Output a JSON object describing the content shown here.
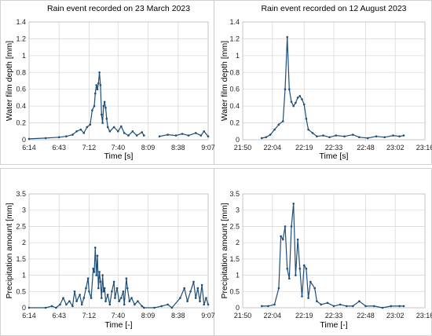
{
  "chart_data": [
    {
      "type": "line",
      "title": "Rain event recorded on 23 March 2023",
      "xlabel": "Time [s]",
      "ylabel": "Water film depth [mm]",
      "xlim": [
        "6:14",
        "9:07"
      ],
      "ylim": [
        0,
        1.4
      ],
      "xticks": [
        "6:14",
        "6:43",
        "7:12",
        "7:40",
        "8:09",
        "8:38",
        "9:07"
      ],
      "yticks": [
        "0",
        "0.2",
        "0.4",
        "0.6",
        "0.8",
        "1",
        "1.2",
        "1.4"
      ],
      "grid": true,
      "series": [
        {
          "values": [
            [
              "6:14",
              0.01
            ],
            [
              "6:30",
              0.02
            ],
            [
              "6:43",
              0.03
            ],
            [
              "6:50",
              0.04
            ],
            [
              "6:56",
              0.06
            ],
            [
              "7:00",
              0.1
            ],
            [
              "7:04",
              0.12
            ],
            [
              "7:07",
              0.08
            ],
            [
              "7:10",
              0.15
            ],
            [
              "7:13",
              0.18
            ],
            [
              "7:15",
              0.35
            ],
            [
              "7:17",
              0.4
            ],
            [
              "7:18",
              0.55
            ],
            [
              "7:19",
              0.65
            ],
            [
              "7:20",
              0.6
            ],
            [
              "7:21",
              0.67
            ],
            [
              "7:22",
              0.8
            ],
            [
              "7:23",
              0.65
            ],
            [
              "7:24",
              0.3
            ],
            [
              "7:25",
              0.2
            ],
            [
              "7:26",
              0.4
            ],
            [
              "7:27",
              0.45
            ],
            [
              "7:28",
              0.38
            ],
            [
              "7:29",
              0.25
            ],
            [
              "7:30",
              0.15
            ],
            [
              "7:32",
              0.1
            ],
            [
              "7:36",
              0.15
            ],
            [
              "7:40",
              0.1
            ],
            [
              "7:43",
              0.16
            ],
            [
              "7:46",
              0.08
            ],
            [
              "7:50",
              0.05
            ],
            [
              "7:54",
              0.1
            ],
            [
              "7:58",
              0.05
            ],
            [
              "8:03",
              0.09
            ],
            [
              "8:05",
              0.05
            ],
            [
              "8:09",
              null
            ],
            [
              "8:20",
              0.04
            ],
            [
              "8:28",
              0.06
            ],
            [
              "8:36",
              0.05
            ],
            [
              "8:42",
              0.07
            ],
            [
              "8:48",
              0.05
            ],
            [
              "8:55",
              0.08
            ],
            [
              "9:00",
              0.05
            ],
            [
              "9:03",
              0.1
            ],
            [
              "9:07",
              0.04
            ]
          ]
        }
      ]
    },
    {
      "type": "line",
      "title": "Rain event recorded on 12 August 2023",
      "xlabel": "Time [s]",
      "ylabel": "Water film depth [mm]",
      "xlim": [
        "21:50",
        "23:16"
      ],
      "ylim": [
        0,
        1.4
      ],
      "xticks": [
        "21:50",
        "22:04",
        "22:19",
        "22:33",
        "22:48",
        "23:02",
        "23:16"
      ],
      "yticks": [
        "0",
        "0.2",
        "0.4",
        "0.6",
        "0.8",
        "1",
        "1.2",
        "1.4"
      ],
      "grid": true,
      "series": [
        {
          "values": [
            [
              "21:59",
              0.02
            ],
            [
              "22:01",
              0.03
            ],
            [
              "22:03",
              0.06
            ],
            [
              "22:05",
              0.12
            ],
            [
              "22:07",
              0.18
            ],
            [
              "22:09",
              0.22
            ],
            [
              "22:10",
              0.6
            ],
            [
              "22:11",
              1.22
            ],
            [
              "22:12",
              0.6
            ],
            [
              "22:13",
              0.45
            ],
            [
              "22:14",
              0.4
            ],
            [
              "22:15",
              0.44
            ],
            [
              "22:16",
              0.5
            ],
            [
              "22:17",
              0.52
            ],
            [
              "22:18",
              0.48
            ],
            [
              "22:19",
              0.42
            ],
            [
              "22:20",
              0.25
            ],
            [
              "22:21",
              0.12
            ],
            [
              "22:23",
              0.08
            ],
            [
              "22:25",
              0.04
            ],
            [
              "22:28",
              0.05
            ],
            [
              "22:31",
              0.03
            ],
            [
              "22:34",
              0.05
            ],
            [
              "22:38",
              0.04
            ],
            [
              "22:42",
              0.06
            ],
            [
              "22:45",
              0.03
            ],
            [
              "22:49",
              0.02
            ],
            [
              "22:53",
              0.04
            ],
            [
              "22:57",
              0.03
            ],
            [
              "23:01",
              0.05
            ],
            [
              "23:04",
              0.04
            ],
            [
              "23:06",
              0.05
            ]
          ]
        }
      ]
    },
    {
      "type": "line",
      "title": "",
      "xlabel": "Time [-]",
      "ylabel": "Precipitation amount [mm]",
      "xlim": [
        "6:14",
        "9:07"
      ],
      "ylim": [
        0,
        3.5
      ],
      "xticks": [
        "6:14",
        "6:43",
        "7:12",
        "7:40",
        "8:09",
        "8:38",
        "9:07"
      ],
      "yticks": [
        "0",
        "0.5",
        "1",
        "1.5",
        "2",
        "2.5",
        "3",
        "3.5"
      ],
      "grid": true,
      "series": [
        {
          "values": [
            [
              "6:14",
              0.0
            ],
            [
              "6:30",
              0.0
            ],
            [
              "6:36",
              0.05
            ],
            [
              "6:40",
              0.0
            ],
            [
              "6:44",
              0.1
            ],
            [
              "6:47",
              0.3
            ],
            [
              "6:50",
              0.1
            ],
            [
              "6:53",
              0.2
            ],
            [
              "6:56",
              0.05
            ],
            [
              "6:58",
              0.5
            ],
            [
              "7:00",
              0.2
            ],
            [
              "7:03",
              0.4
            ],
            [
              "7:05",
              0.1
            ],
            [
              "7:07",
              0.3
            ],
            [
              "7:09",
              0.6
            ],
            [
              "7:11",
              0.9
            ],
            [
              "7:12",
              0.5
            ],
            [
              "7:14",
              0.3
            ],
            [
              "7:16",
              1.2
            ],
            [
              "7:17",
              1.1
            ],
            [
              "7:18",
              1.85
            ],
            [
              "7:19",
              1.0
            ],
            [
              "7:20",
              1.6
            ],
            [
              "7:21",
              0.6
            ],
            [
              "7:22",
              1.1
            ],
            [
              "7:23",
              0.8
            ],
            [
              "7:24",
              0.3
            ],
            [
              "7:25",
              1.0
            ],
            [
              "7:26",
              0.5
            ],
            [
              "7:27",
              0.6
            ],
            [
              "7:28",
              0.2
            ],
            [
              "7:30",
              0.4
            ],
            [
              "7:32",
              0.1
            ],
            [
              "7:34",
              0.5
            ],
            [
              "7:36",
              0.8
            ],
            [
              "7:37",
              0.3
            ],
            [
              "7:39",
              0.6
            ],
            [
              "7:41",
              0.2
            ],
            [
              "7:43",
              0.3
            ],
            [
              "7:45",
              0.5
            ],
            [
              "7:46",
              0.1
            ],
            [
              "7:48",
              0.9
            ],
            [
              "7:49",
              0.6
            ],
            [
              "7:51",
              0.2
            ],
            [
              "7:53",
              0.3
            ],
            [
              "7:56",
              0.1
            ],
            [
              "7:59",
              0.2
            ],
            [
              "8:03",
              0.05
            ],
            [
              "8:05",
              0.0
            ],
            [
              "8:15",
              0.0
            ],
            [
              "8:22",
              0.05
            ],
            [
              "8:28",
              0.1
            ],
            [
              "8:32",
              0.0
            ],
            [
              "8:40",
              0.3
            ],
            [
              "8:44",
              0.6
            ],
            [
              "8:47",
              0.2
            ],
            [
              "8:50",
              0.5
            ],
            [
              "8:53",
              0.8
            ],
            [
              "8:55",
              0.3
            ],
            [
              "8:57",
              0.6
            ],
            [
              "8:59",
              0.2
            ],
            [
              "9:01",
              0.7
            ],
            [
              "9:03",
              0.1
            ],
            [
              "9:05",
              0.3
            ],
            [
              "9:07",
              0.1
            ]
          ]
        }
      ]
    },
    {
      "type": "line",
      "title": "",
      "xlabel": "Time [-]",
      "ylabel": "Precipitation amount [mm]",
      "xlim": [
        "21:50",
        "23:16"
      ],
      "ylim": [
        0,
        3.5
      ],
      "xticks": [
        "21:50",
        "22:04",
        "22:19",
        "22:33",
        "22:48",
        "23:02",
        "23:16"
      ],
      "yticks": [
        "0",
        "0.5",
        "1",
        "1.5",
        "2",
        "2.5",
        "3",
        "3.5"
      ],
      "grid": true,
      "series": [
        {
          "values": [
            [
              "21:59",
              0.05
            ],
            [
              "22:02",
              0.05
            ],
            [
              "22:05",
              0.1
            ],
            [
              "22:07",
              0.6
            ],
            [
              "22:08",
              2.2
            ],
            [
              "22:09",
              2.1
            ],
            [
              "22:10",
              2.5
            ],
            [
              "22:11",
              1.2
            ],
            [
              "22:12",
              0.9
            ],
            [
              "22:13",
              2.5
            ],
            [
              "22:14",
              3.2
            ],
            [
              "22:15",
              1.0
            ],
            [
              "22:16",
              2.1
            ],
            [
              "22:17",
              1.2
            ],
            [
              "22:18",
              0.35
            ],
            [
              "22:19",
              1.3
            ],
            [
              "22:20",
              1.2
            ],
            [
              "22:21",
              0.3
            ],
            [
              "22:22",
              0.8
            ],
            [
              "22:24",
              0.6
            ],
            [
              "22:25",
              0.2
            ],
            [
              "22:27",
              0.1
            ],
            [
              "22:30",
              0.15
            ],
            [
              "22:33",
              0.05
            ],
            [
              "22:36",
              0.1
            ],
            [
              "22:39",
              0.05
            ],
            [
              "22:42",
              0.05
            ],
            [
              "22:45",
              0.2
            ],
            [
              "22:48",
              0.05
            ],
            [
              "22:52",
              0.05
            ],
            [
              "22:56",
              0.0
            ],
            [
              "23:00",
              0.05
            ],
            [
              "23:04",
              0.05
            ],
            [
              "23:06",
              0.05
            ]
          ]
        }
      ]
    }
  ]
}
